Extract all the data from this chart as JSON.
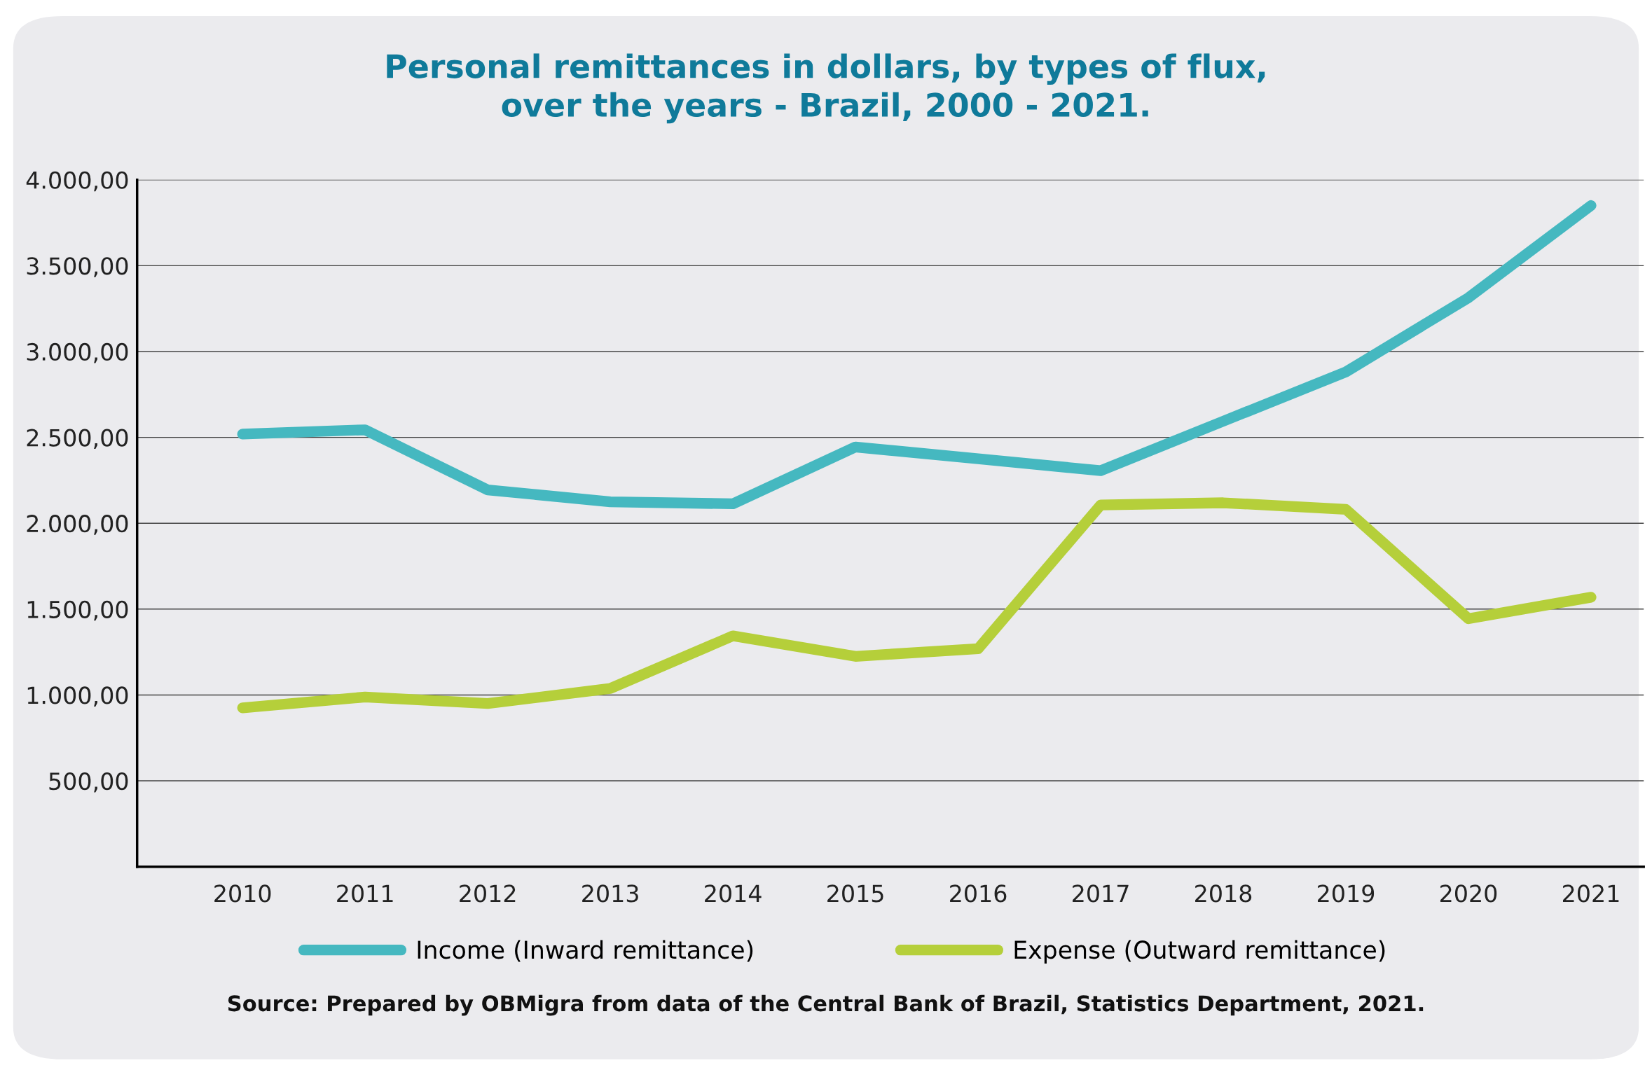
{
  "chart_data": {
    "type": "line",
    "title": "Personal remittances in dollars, by types of flux,\nover the years - Brazil, 2000 - 2021.",
    "categories": [
      "2010",
      "2011",
      "2012",
      "2013",
      "2014",
      "2015",
      "2016",
      "2017",
      "2018",
      "2019",
      "2020",
      "2021"
    ],
    "series": [
      {
        "name": "Income (Inward remittance)",
        "color": "#45b8c0",
        "values": [
          2519,
          2544,
          2194,
          2125,
          2113,
          2444,
          2375,
          2306,
          2594,
          2881,
          3313,
          3850
        ]
      },
      {
        "name": "Expense (Outward remittance)",
        "color": "#b5cf3a",
        "values": [
          925,
          988,
          950,
          1038,
          1344,
          1225,
          1269,
          2106,
          2119,
          2081,
          1444,
          1569
        ]
      }
    ],
    "ylim": [
      0,
      4000
    ],
    "yticks": [
      {
        "value": 500,
        "label": "500,00"
      },
      {
        "value": 1000,
        "label": "1.000,00"
      },
      {
        "value": 1500,
        "label": "1.500,00"
      },
      {
        "value": 2000,
        "label": "2.000,00"
      },
      {
        "value": 2500,
        "label": "2.500,00"
      },
      {
        "value": 3000,
        "label": "3.000,00"
      },
      {
        "value": 3500,
        "label": "3.500,00"
      },
      {
        "value": 4000,
        "label": "4.000,00"
      }
    ],
    "grid": "y",
    "legend": "bottom",
    "line_style": "solid",
    "annotations": [
      "Source: Prepared by OBMigra from data of the Central Bank of Brazil, Statistics Department, 2021."
    ]
  }
}
